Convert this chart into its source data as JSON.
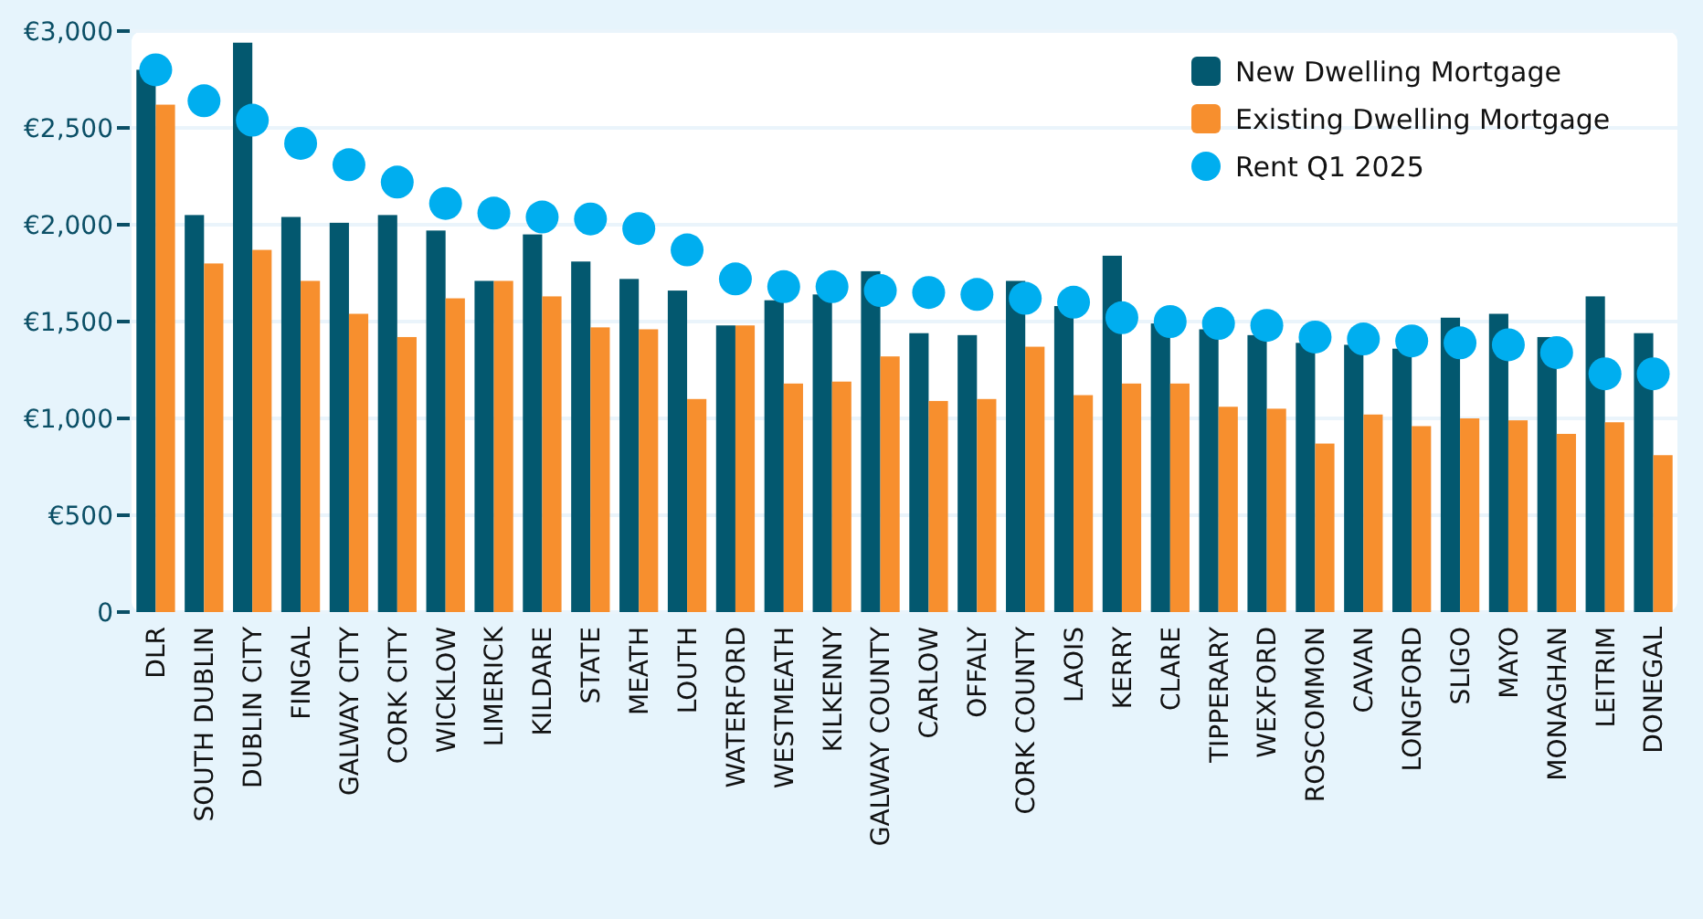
{
  "chart_data": {
    "type": "bar",
    "categories": [
      "DLR",
      "SOUTH DUBLIN",
      "DUBLIN CITY",
      "FINGAL",
      "GALWAY CITY",
      "CORK CITY",
      "WICKLOW",
      "LIMERICK",
      "KILDARE",
      "STATE",
      "MEATH",
      "LOUTH",
      "WATERFORD",
      "WESTMEATH",
      "KILKENNY",
      "GALWAY COUNTY",
      "CARLOW",
      "OFFALY",
      "CORK COUNTY",
      "LAOIS",
      "KERRY",
      "CLARE",
      "TIPPERARY",
      "WEXFORD",
      "ROSCOMMON",
      "CAVAN",
      "LONGFORD",
      "SLIGO",
      "MAYO",
      "MONAGHAN",
      "LEITRIM",
      "DONEGAL"
    ],
    "series": [
      {
        "name": "New Dwelling Mortgage",
        "color": "#03586f",
        "values": [
          2800,
          2050,
          2940,
          2040,
          2010,
          2050,
          1970,
          1710,
          1950,
          1810,
          1720,
          1660,
          1480,
          1610,
          1640,
          1760,
          1440,
          1430,
          1710,
          1580,
          1840,
          1490,
          1460,
          1430,
          1390,
          1380,
          1360,
          1520,
          1540,
          1420,
          1630,
          1440
        ]
      },
      {
        "name": "Existing Dwelling Mortgage",
        "color": "#f78f2e",
        "values": [
          2620,
          1800,
          1870,
          1710,
          1540,
          1420,
          1620,
          1710,
          1630,
          1470,
          1460,
          1100,
          1480,
          1180,
          1190,
          1320,
          1090,
          1100,
          1370,
          1120,
          1180,
          1180,
          1060,
          1050,
          870,
          1020,
          960,
          1000,
          990,
          920,
          980,
          810
        ]
      },
      {
        "name": "Rent Q1 2025",
        "type": "scatter",
        "marker": "circle",
        "color": "#00aeef",
        "values": [
          2800,
          2640,
          2540,
          2420,
          2310,
          2220,
          2110,
          2060,
          2040,
          2030,
          1980,
          1870,
          1720,
          1680,
          1680,
          1660,
          1650,
          1640,
          1620,
          1600,
          1520,
          1500,
          1490,
          1480,
          1420,
          1410,
          1400,
          1390,
          1380,
          1340,
          1230,
          1230
        ]
      }
    ],
    "ylim": [
      0,
      3000
    ],
    "yticks": [
      {
        "value": 0,
        "label": "0"
      },
      {
        "value": 500,
        "label": "€500"
      },
      {
        "value": 1000,
        "label": "€1,000"
      },
      {
        "value": 1500,
        "label": "€1,500"
      },
      {
        "value": 2000,
        "label": "€2,000"
      },
      {
        "value": 2500,
        "label": "€2,500"
      },
      {
        "value": 3000,
        "label": "€3,000"
      }
    ],
    "grid": "y",
    "legend": "top right"
  }
}
